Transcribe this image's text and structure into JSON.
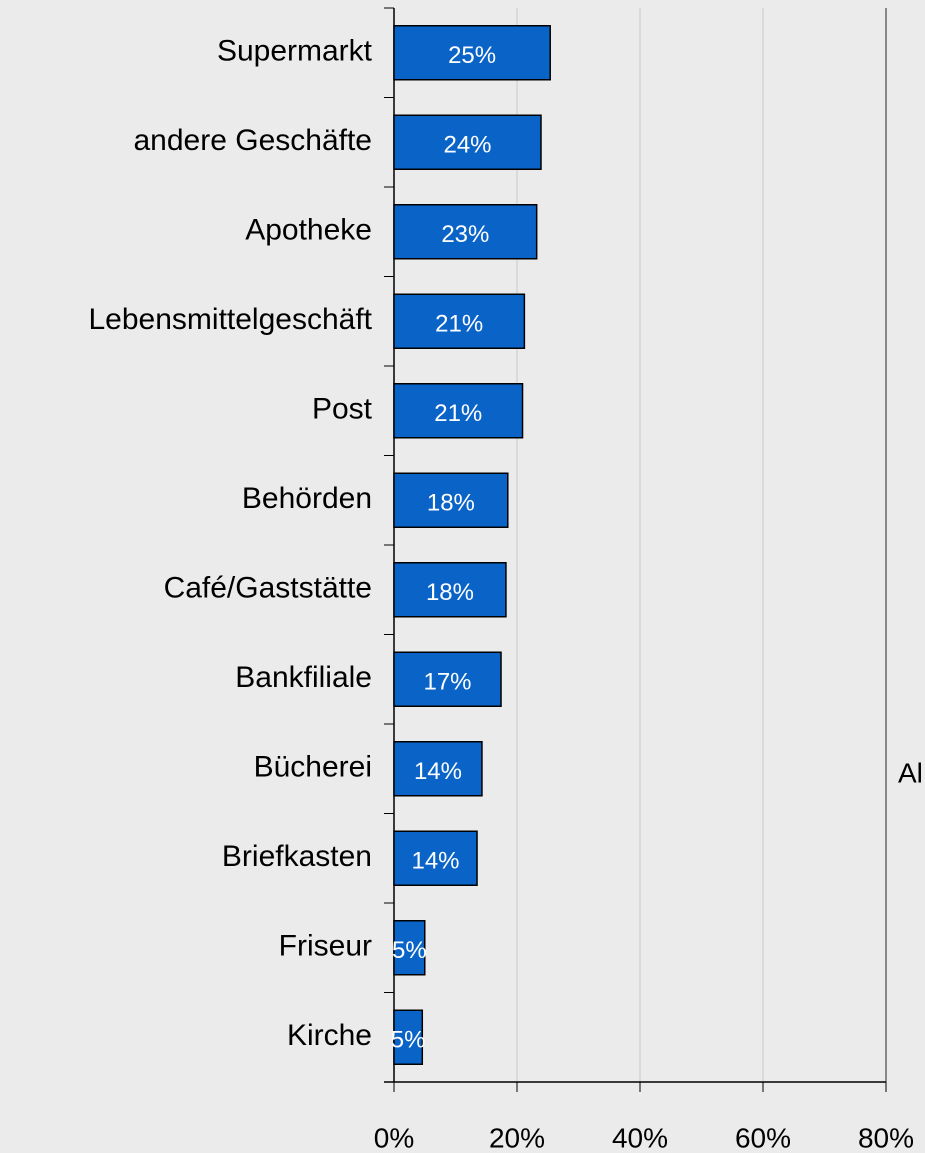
{
  "chart_data": {
    "type": "hbar",
    "categories": [
      "Supermarkt",
      "andere Geschäfte",
      "Apotheke",
      "Lebensmittelgeschäft",
      "Post",
      "Behörden",
      "Café/Gaststätte",
      "Bankfiliale",
      "Bücherei",
      "Briefkasten",
      "Friseur",
      "Kirche"
    ],
    "values": [
      25.4,
      23.9,
      23.2,
      21.2,
      20.9,
      18.5,
      18.2,
      17.4,
      14.3,
      13.5,
      5.0,
      4.6
    ],
    "value_labels": [
      "25%",
      "24%",
      "23%",
      "21%",
      "21%",
      "18%",
      "18%",
      "17%",
      "14%",
      "14%",
      "5%",
      "5%"
    ],
    "color": "#0a64c8",
    "xlim": [
      0,
      80
    ],
    "xticks": [
      {
        "value": 0,
        "label": "0%"
      },
      {
        "value": 20,
        "label": "20%"
      },
      {
        "value": 40,
        "label": "40%"
      },
      {
        "value": 60,
        "label": "60%"
      },
      {
        "value": 80,
        "label": "80%"
      }
    ],
    "grid": true,
    "annotations": [
      "Al"
    ]
  }
}
